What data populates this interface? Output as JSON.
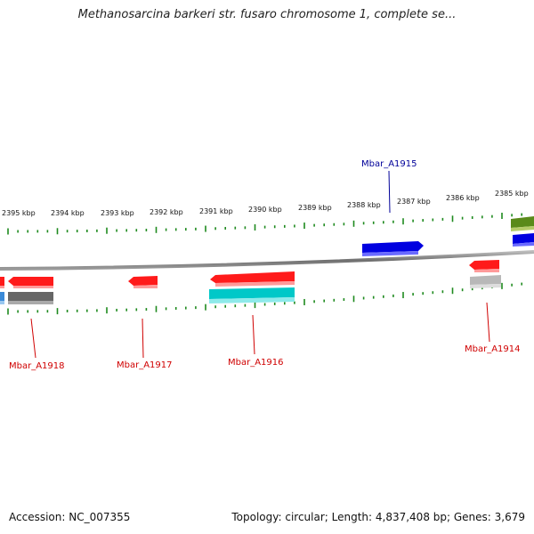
{
  "title": "Methanosarcina barkeri str. fusaro chromosome 1, complete se...",
  "footer": {
    "accession": "Accession: NC_007355",
    "summary": "Topology: circular; Length: 4,837,408 bp; Genes: 3,679"
  },
  "colors": {
    "tick": "#1e8a1e",
    "backbone": "#808080",
    "red_gene": "#ff1a1a",
    "blue_gene": "#0000e0",
    "cyan_gene": "#00c8c8",
    "gray_gene": "#666666",
    "lightgray_gene": "#b8b8b8",
    "olive_gene": "#5a8a1a",
    "label_red": "#d00000",
    "label_blue": "#000099"
  },
  "kbp_labels": [
    "2395 kbp",
    "2394 kbp",
    "2393 kbp",
    "2392 kbp",
    "2391 kbp",
    "2390 kbp",
    "2389 kbp",
    "2388 kbp",
    "2387 kbp",
    "2386 kbp",
    "2385 kbp"
  ],
  "gene_labels": [
    {
      "text": "Mbar_A1918",
      "strand": "minus"
    },
    {
      "text": "Mbar_A1917",
      "strand": "minus"
    },
    {
      "text": "Mbar_A1916",
      "strand": "minus"
    },
    {
      "text": "Mbar_A1915",
      "strand": "plus"
    },
    {
      "text": "Mbar_A1914",
      "strand": "minus"
    }
  ]
}
